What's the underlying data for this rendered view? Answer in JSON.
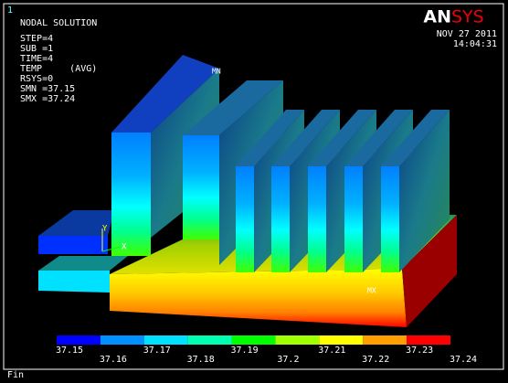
{
  "window_number": "1",
  "header": {
    "title": "NODAL SOLUTION",
    "info": [
      "STEP=4",
      "SUB =1",
      "TIME=4",
      "TEMP     (AVG)",
      "RSYS=0",
      "SMN =37.15",
      "SMX =37.24"
    ],
    "logo_left": "AN",
    "logo_right": "SYS",
    "date": "NOV 27 2011",
    "time": "14:04:31"
  },
  "model": {
    "min_label": "MN",
    "max_label": "MX",
    "axis_y": "Y",
    "axis_x": "X"
  },
  "legend": {
    "labels": [
      "37.15",
      "37.16",
      "37.17",
      "37.18",
      "37.19",
      "37.2",
      "37.21",
      "37.22",
      "37.23",
      "37.24"
    ]
  },
  "footer": "Fin"
}
